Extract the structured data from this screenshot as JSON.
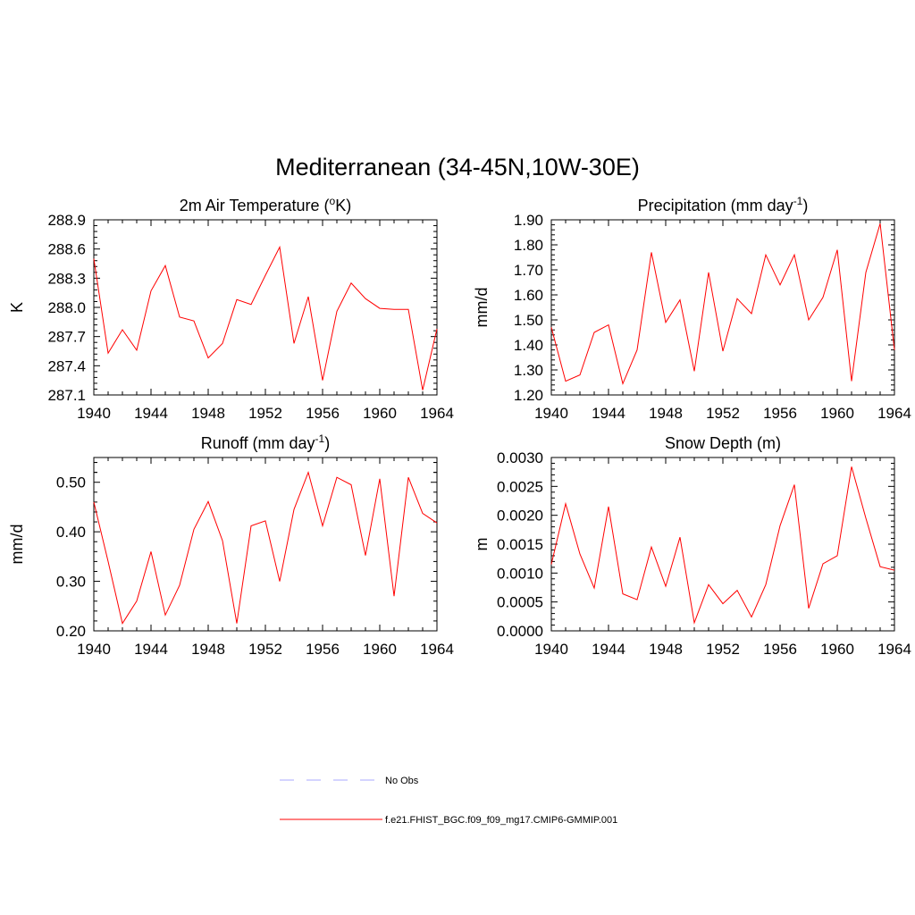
{
  "figure": {
    "title": "Mediterranean (34-45N,10W-30E)"
  },
  "chart_data": [
    {
      "type": "line",
      "title": "2m Air Temperature (oK)",
      "title_parts": {
        "pre": "2m Air Temperature (",
        "sup": "o",
        "post": "K)"
      },
      "xlabel": "",
      "ylabel": "K",
      "xlim": [
        1940,
        1964
      ],
      "ylim": [
        287.1,
        288.9
      ],
      "xticks": [
        1940,
        1944,
        1948,
        1952,
        1956,
        1960,
        1964
      ],
      "xtick_labels": [
        "1940",
        "1944",
        "1948",
        "1952",
        "1956",
        "1960",
        "1964"
      ],
      "yticks": [
        287.1,
        287.4,
        287.7,
        288.0,
        288.3,
        288.6,
        288.9
      ],
      "ytick_labels": [
        "287.1",
        "287.4",
        "287.7",
        "288.0",
        "288.3",
        "288.6",
        "288.9"
      ],
      "series": [
        {
          "name": "f.e21.FHIST_BGC.f09_f09_mg17.CMIP6-GMMIP.001",
          "color": "#ff0000",
          "x": [
            1940,
            1941,
            1942,
            1943,
            1944,
            1945,
            1946,
            1947,
            1948,
            1949,
            1950,
            1951,
            1952,
            1953,
            1954,
            1955,
            1956,
            1957,
            1958,
            1959,
            1960,
            1961,
            1962,
            1963,
            1964
          ],
          "values": [
            288.5,
            287.53,
            287.77,
            287.56,
            288.17,
            288.43,
            287.9,
            287.86,
            287.48,
            287.63,
            288.08,
            288.03,
            288.33,
            288.62,
            287.63,
            288.11,
            287.25,
            287.96,
            288.25,
            288.09,
            287.99,
            287.98,
            287.98,
            287.15,
            287.78
          ]
        }
      ]
    },
    {
      "type": "line",
      "title": "Precipitation (mm day-1)",
      "title_parts": {
        "pre": "Precipitation (mm day",
        "sup": "-1",
        "post": ")"
      },
      "xlabel": "",
      "ylabel": "mm/d",
      "xlim": [
        1940,
        1964
      ],
      "ylim": [
        1.2,
        1.9
      ],
      "xticks": [
        1940,
        1944,
        1948,
        1952,
        1956,
        1960,
        1964
      ],
      "xtick_labels": [
        "1940",
        "1944",
        "1948",
        "1952",
        "1956",
        "1960",
        "1964"
      ],
      "yticks": [
        1.2,
        1.3,
        1.4,
        1.5,
        1.6,
        1.7,
        1.8,
        1.9
      ],
      "ytick_labels": [
        "1.20",
        "1.30",
        "1.40",
        "1.50",
        "1.60",
        "1.70",
        "1.80",
        "1.90"
      ],
      "series": [
        {
          "name": "f.e21.FHIST_BGC.f09_f09_mg17.CMIP6-GMMIP.001",
          "color": "#ff0000",
          "x": [
            1940,
            1941,
            1942,
            1943,
            1944,
            1945,
            1946,
            1947,
            1948,
            1949,
            1950,
            1951,
            1952,
            1953,
            1954,
            1955,
            1956,
            1957,
            1958,
            1959,
            1960,
            1961,
            1962,
            1963,
            1964
          ],
          "values": [
            1.47,
            1.255,
            1.28,
            1.45,
            1.48,
            1.245,
            1.38,
            1.77,
            1.49,
            1.58,
            1.295,
            1.69,
            1.375,
            1.585,
            1.525,
            1.76,
            1.64,
            1.76,
            1.5,
            1.59,
            1.78,
            1.255,
            1.69,
            1.885,
            1.38
          ]
        }
      ]
    },
    {
      "type": "line",
      "title": "Runoff (mm day-1)",
      "title_parts": {
        "pre": "Runoff (mm day",
        "sup": "-1",
        "post": ")"
      },
      "xlabel": "",
      "ylabel": "mm/d",
      "xlim": [
        1940,
        1964
      ],
      "ylim": [
        0.2,
        0.55
      ],
      "xticks": [
        1940,
        1944,
        1948,
        1952,
        1956,
        1960,
        1964
      ],
      "xtick_labels": [
        "1940",
        "1944",
        "1948",
        "1952",
        "1956",
        "1960",
        "1964"
      ],
      "yticks": [
        0.2,
        0.3,
        0.4,
        0.5
      ],
      "ytick_labels": [
        "0.20",
        "0.30",
        "0.40",
        "0.50"
      ],
      "series": [
        {
          "name": "f.e21.FHIST_BGC.f09_f09_mg17.CMIP6-GMMIP.001",
          "color": "#ff0000",
          "x": [
            1940,
            1941,
            1942,
            1943,
            1944,
            1945,
            1946,
            1947,
            1948,
            1949,
            1950,
            1951,
            1952,
            1953,
            1954,
            1955,
            1956,
            1957,
            1958,
            1959,
            1960,
            1961,
            1962,
            1963,
            1964
          ],
          "values": [
            0.46,
            0.34,
            0.215,
            0.26,
            0.36,
            0.232,
            0.292,
            0.405,
            0.461,
            0.382,
            0.215,
            0.412,
            0.422,
            0.3,
            0.445,
            0.52,
            0.412,
            0.51,
            0.495,
            0.352,
            0.507,
            0.27,
            0.51,
            0.437,
            0.418
          ]
        }
      ]
    },
    {
      "type": "line",
      "title": "Snow Depth (m)",
      "title_parts": {
        "pre": "Snow Depth (m)",
        "sup": "",
        "post": ""
      },
      "xlabel": "",
      "ylabel": "m",
      "xlim": [
        1940,
        1964
      ],
      "ylim": [
        0.0,
        0.003
      ],
      "xticks": [
        1940,
        1944,
        1948,
        1952,
        1956,
        1960,
        1964
      ],
      "xtick_labels": [
        "1940",
        "1944",
        "1948",
        "1952",
        "1956",
        "1960",
        "1964"
      ],
      "yticks": [
        0.0,
        0.0005,
        0.001,
        0.0015,
        0.002,
        0.0025,
        0.003
      ],
      "ytick_labels": [
        "0.0000",
        "0.0005",
        "0.0010",
        "0.0015",
        "0.0020",
        "0.0025",
        "0.0030"
      ],
      "series": [
        {
          "name": "f.e21.FHIST_BGC.f09_f09_mg17.CMIP6-GMMIP.001",
          "color": "#ff0000",
          "x": [
            1940,
            1941,
            1942,
            1943,
            1944,
            1945,
            1946,
            1947,
            1948,
            1949,
            1950,
            1951,
            1952,
            1953,
            1954,
            1955,
            1956,
            1957,
            1958,
            1959,
            1960,
            1961,
            1962,
            1963,
            1964
          ],
          "values": [
            0.00115,
            0.0022,
            0.00133,
            0.00074,
            0.00215,
            0.00064,
            0.00054,
            0.00145,
            0.00077,
            0.00162,
            0.00014,
            0.0008,
            0.00047,
            0.0007,
            0.00024,
            0.0008,
            0.00182,
            0.00253,
            0.00039,
            0.00116,
            0.0013,
            0.00284,
            0.00195,
            0.00111,
            0.00105
          ]
        }
      ]
    }
  ],
  "legend": {
    "entries": [
      {
        "label": "No Obs",
        "color": "#aaaaff",
        "style": "dashed"
      },
      {
        "label": "f.e21.FHIST_BGC.f09_f09_mg17.CMIP6-GMMIP.001",
        "color": "#ff0000",
        "style": "solid"
      }
    ]
  }
}
